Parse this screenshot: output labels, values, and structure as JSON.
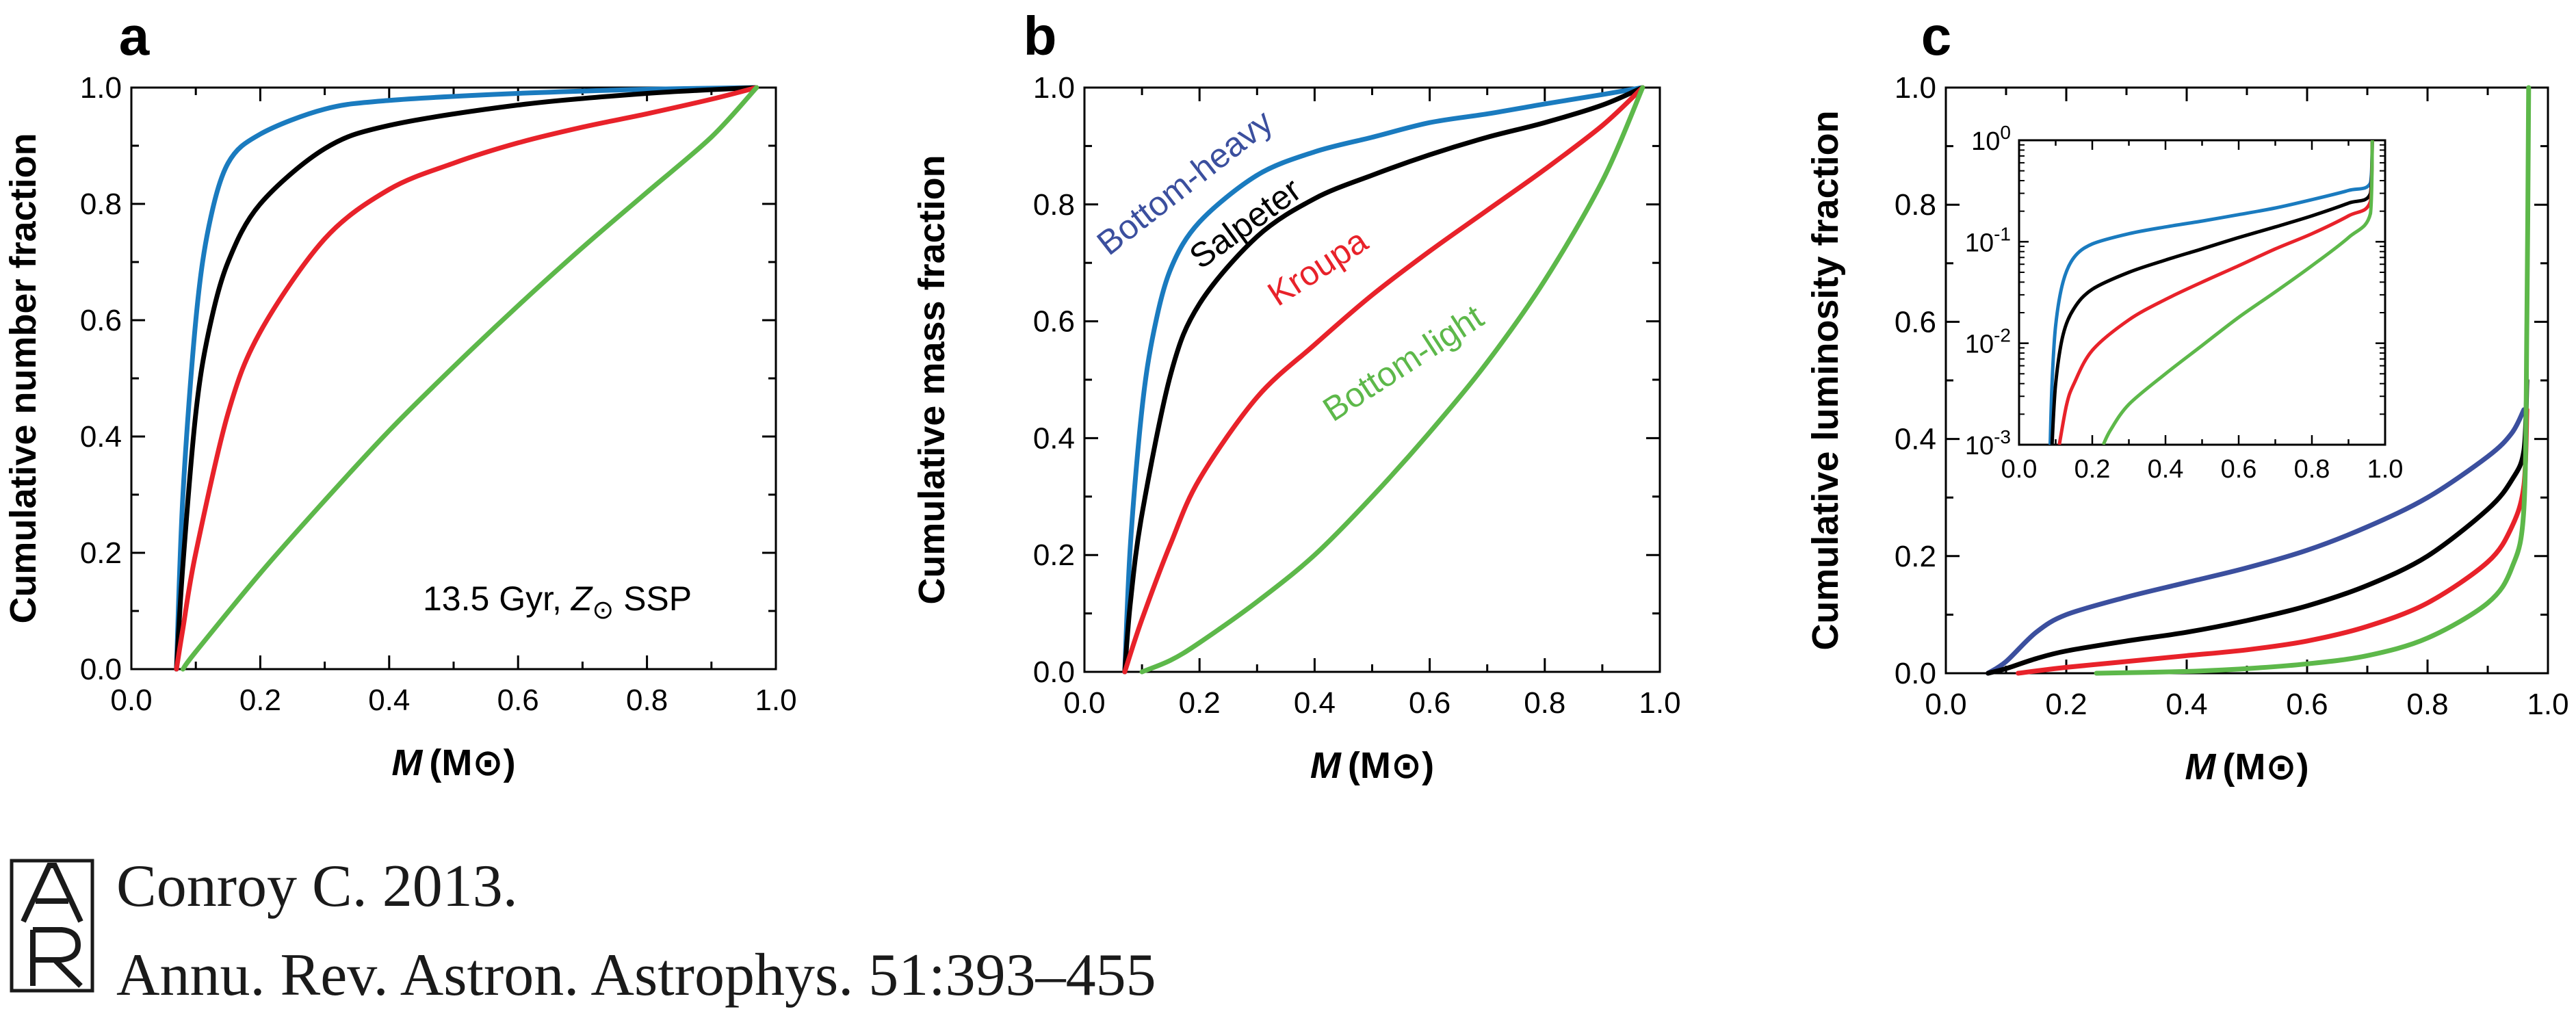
{
  "x_unit_label": "(M⊙)",
  "x_symbol": "M",
  "charts": [
    {
      "panel": "a",
      "ylabel": "Cumulative number fraction",
      "annotation": {
        "pre": "13.5 Gyr, ",
        "symbol": "Z",
        "sub": "⊙",
        "post": " SSP"
      },
      "x_ticks": [
        "0.0",
        "0.2",
        "0.4",
        "0.6",
        "0.8",
        "1.0"
      ],
      "y_ticks": [
        "0.0",
        "0.2",
        "0.4",
        "0.6",
        "0.8",
        "1.0"
      ]
    },
    {
      "panel": "b",
      "ylabel": "Cumulative mass fraction",
      "x_ticks": [
        "0.0",
        "0.2",
        "0.4",
        "0.6",
        "0.8",
        "1.0"
      ],
      "y_ticks": [
        "0.0",
        "0.2",
        "0.4",
        "0.6",
        "0.8",
        "1.0"
      ],
      "curve_labels": [
        "Bottom-heavy",
        "Salpeter",
        "Kroupa",
        "Bottom-light"
      ]
    },
    {
      "panel": "c",
      "ylabel": "Cumulative luminosity fraction",
      "x_ticks": [
        "0.0",
        "0.2",
        "0.4",
        "0.6",
        "0.8",
        "1.0"
      ],
      "y_ticks": [
        "0.0",
        "0.2",
        "0.4",
        "0.6",
        "0.8",
        "1.0"
      ],
      "inset_x_ticks": [
        "0.0",
        "0.2",
        "0.4",
        "0.6",
        "0.8",
        "1.0"
      ],
      "inset_y_ticks": [
        {
          "base": "10",
          "exp": "-3"
        },
        {
          "base": "10",
          "exp": "-2"
        },
        {
          "base": "10",
          "exp": "-1"
        },
        {
          "base": "10",
          "exp": "0"
        }
      ]
    }
  ],
  "chart_data": [
    {
      "type": "line",
      "panel": "a",
      "xlim": [
        0,
        1
      ],
      "ylim": [
        0,
        1
      ],
      "series": [
        {
          "color": "#1a7bbf",
          "x": [
            0.07,
            0.08,
            0.1,
            0.12,
            0.15,
            0.2,
            0.3,
            0.4,
            0.6,
            0.8,
            0.97
          ],
          "y": [
            0.0,
            0.3,
            0.6,
            0.76,
            0.87,
            0.92,
            0.963,
            0.978,
            0.99,
            0.997,
            1.0
          ]
        },
        {
          "color": "#000000",
          "x": [
            0.07,
            0.08,
            0.1,
            0.12,
            0.15,
            0.2,
            0.3,
            0.4,
            0.6,
            0.8,
            0.97
          ],
          "y": [
            0.0,
            0.18,
            0.44,
            0.58,
            0.7,
            0.8,
            0.895,
            0.935,
            0.97,
            0.99,
            1.0
          ]
        },
        {
          "color": "#e8222a",
          "x": [
            0.07,
            0.08,
            0.1,
            0.15,
            0.2,
            0.3,
            0.4,
            0.5,
            0.6,
            0.7,
            0.8,
            0.9,
            0.97
          ],
          "y": [
            0.0,
            0.07,
            0.2,
            0.44,
            0.58,
            0.74,
            0.825,
            0.87,
            0.905,
            0.932,
            0.955,
            0.98,
            1.0
          ]
        },
        {
          "color": "#5db84a",
          "x": [
            0.08,
            0.1,
            0.2,
            0.3,
            0.4,
            0.5,
            0.6,
            0.7,
            0.8,
            0.9,
            0.97
          ],
          "y": [
            0.0,
            0.03,
            0.165,
            0.29,
            0.41,
            0.52,
            0.625,
            0.725,
            0.82,
            0.915,
            1.0
          ]
        }
      ]
    },
    {
      "type": "line",
      "panel": "b",
      "xlim": [
        0,
        1
      ],
      "ylim": [
        0,
        1
      ],
      "series": [
        {
          "name": "Bottom-heavy",
          "color": "#1a7bbf",
          "x": [
            0.07,
            0.08,
            0.1,
            0.12,
            0.15,
            0.2,
            0.3,
            0.4,
            0.5,
            0.6,
            0.7,
            0.8,
            0.9,
            0.97
          ],
          "y": [
            0.0,
            0.22,
            0.45,
            0.58,
            0.69,
            0.77,
            0.85,
            0.89,
            0.915,
            0.94,
            0.955,
            0.972,
            0.988,
            1.0
          ]
        },
        {
          "name": "Salpeter",
          "color": "#000000",
          "x": [
            0.07,
            0.08,
            0.1,
            0.15,
            0.2,
            0.3,
            0.4,
            0.5,
            0.6,
            0.7,
            0.8,
            0.9,
            0.97
          ],
          "y": [
            0.0,
            0.12,
            0.27,
            0.51,
            0.63,
            0.745,
            0.81,
            0.85,
            0.885,
            0.915,
            0.94,
            0.97,
            1.0
          ]
        },
        {
          "name": "Kroupa",
          "color": "#e8222a",
          "x": [
            0.07,
            0.1,
            0.15,
            0.2,
            0.3,
            0.4,
            0.5,
            0.6,
            0.7,
            0.8,
            0.9,
            0.97
          ],
          "y": [
            0.0,
            0.09,
            0.22,
            0.33,
            0.47,
            0.56,
            0.645,
            0.72,
            0.79,
            0.86,
            0.935,
            1.0
          ]
        },
        {
          "name": "Bottom-light",
          "color": "#5db84a",
          "x": [
            0.1,
            0.15,
            0.2,
            0.3,
            0.4,
            0.5,
            0.6,
            0.7,
            0.8,
            0.9,
            0.97
          ],
          "y": [
            0.0,
            0.02,
            0.05,
            0.12,
            0.2,
            0.3,
            0.41,
            0.53,
            0.67,
            0.84,
            1.0
          ]
        }
      ]
    },
    {
      "type": "line",
      "panel": "c",
      "xlim": [
        0,
        1
      ],
      "ylim": [
        0,
        1
      ],
      "series": [
        {
          "color": "#3b4f9e",
          "x": [
            0.07,
            0.1,
            0.15,
            0.2,
            0.3,
            0.4,
            0.5,
            0.6,
            0.7,
            0.8,
            0.9,
            0.94,
            0.96
          ],
          "y": [
            0.0,
            0.02,
            0.07,
            0.1,
            0.13,
            0.155,
            0.18,
            0.21,
            0.25,
            0.3,
            0.37,
            0.41,
            0.45
          ]
        },
        {
          "color": "#000000",
          "x": [
            0.07,
            0.1,
            0.15,
            0.2,
            0.3,
            0.4,
            0.5,
            0.6,
            0.7,
            0.8,
            0.9,
            0.94,
            0.96,
            0.965
          ],
          "y": [
            0.0,
            0.008,
            0.025,
            0.038,
            0.055,
            0.07,
            0.09,
            0.115,
            0.15,
            0.2,
            0.28,
            0.33,
            0.38,
            0.5
          ]
        },
        {
          "color": "#e8222a",
          "x": [
            0.12,
            0.2,
            0.3,
            0.4,
            0.5,
            0.6,
            0.7,
            0.8,
            0.9,
            0.94,
            0.96,
            0.965
          ],
          "y": [
            0.0,
            0.01,
            0.02,
            0.03,
            0.04,
            0.055,
            0.08,
            0.12,
            0.19,
            0.25,
            0.32,
            0.45
          ]
        },
        {
          "color": "#5db84a",
          "x": [
            0.25,
            0.4,
            0.5,
            0.6,
            0.7,
            0.8,
            0.9,
            0.94,
            0.96,
            0.965,
            0.968
          ],
          "y": [
            0.0,
            0.003,
            0.008,
            0.016,
            0.03,
            0.06,
            0.12,
            0.18,
            0.28,
            0.6,
            1.0
          ]
        }
      ],
      "inset": {
        "type": "line",
        "xlim": [
          0,
          1
        ],
        "ylim": [
          0.001,
          1
        ],
        "yscale": "log",
        "series": [
          {
            "color": "#1a7bbf",
            "x": [
              0.085,
              0.09,
              0.1,
              0.12,
              0.15,
              0.2,
              0.3,
              0.4,
              0.5,
              0.6,
              0.7,
              0.8,
              0.9,
              0.96,
              0.965
            ],
            "y": [
              0.001,
              0.004,
              0.015,
              0.04,
              0.07,
              0.095,
              0.12,
              0.14,
              0.16,
              0.185,
              0.215,
              0.26,
              0.32,
              0.38,
              1.0
            ]
          },
          {
            "color": "#000000",
            "x": [
              0.09,
              0.1,
              0.12,
              0.15,
              0.2,
              0.3,
              0.4,
              0.5,
              0.6,
              0.7,
              0.8,
              0.9,
              0.96,
              0.965
            ],
            "y": [
              0.001,
              0.004,
              0.012,
              0.022,
              0.034,
              0.05,
              0.066,
              0.085,
              0.11,
              0.14,
              0.18,
              0.24,
              0.3,
              1.0
            ]
          },
          {
            "color": "#e8222a",
            "x": [
              0.11,
              0.13,
              0.15,
              0.2,
              0.3,
              0.4,
              0.5,
              0.6,
              0.7,
              0.8,
              0.9,
              0.96,
              0.965
            ],
            "y": [
              0.001,
              0.0025,
              0.004,
              0.0085,
              0.017,
              0.027,
              0.04,
              0.058,
              0.085,
              0.12,
              0.18,
              0.25,
              1.0
            ]
          },
          {
            "color": "#5db84a",
            "x": [
              0.23,
              0.25,
              0.3,
              0.4,
              0.5,
              0.6,
              0.7,
              0.8,
              0.9,
              0.96,
              0.965
            ],
            "y": [
              0.001,
              0.0014,
              0.0025,
              0.005,
              0.0095,
              0.018,
              0.032,
              0.058,
              0.11,
              0.19,
              1.0
            ]
          }
        ]
      }
    }
  ],
  "citation": {
    "line1": "Conroy C. 2013.",
    "line2": "Annu. Rev. Astron. Astrophys. 51:393–455",
    "logo_text": "AR"
  }
}
